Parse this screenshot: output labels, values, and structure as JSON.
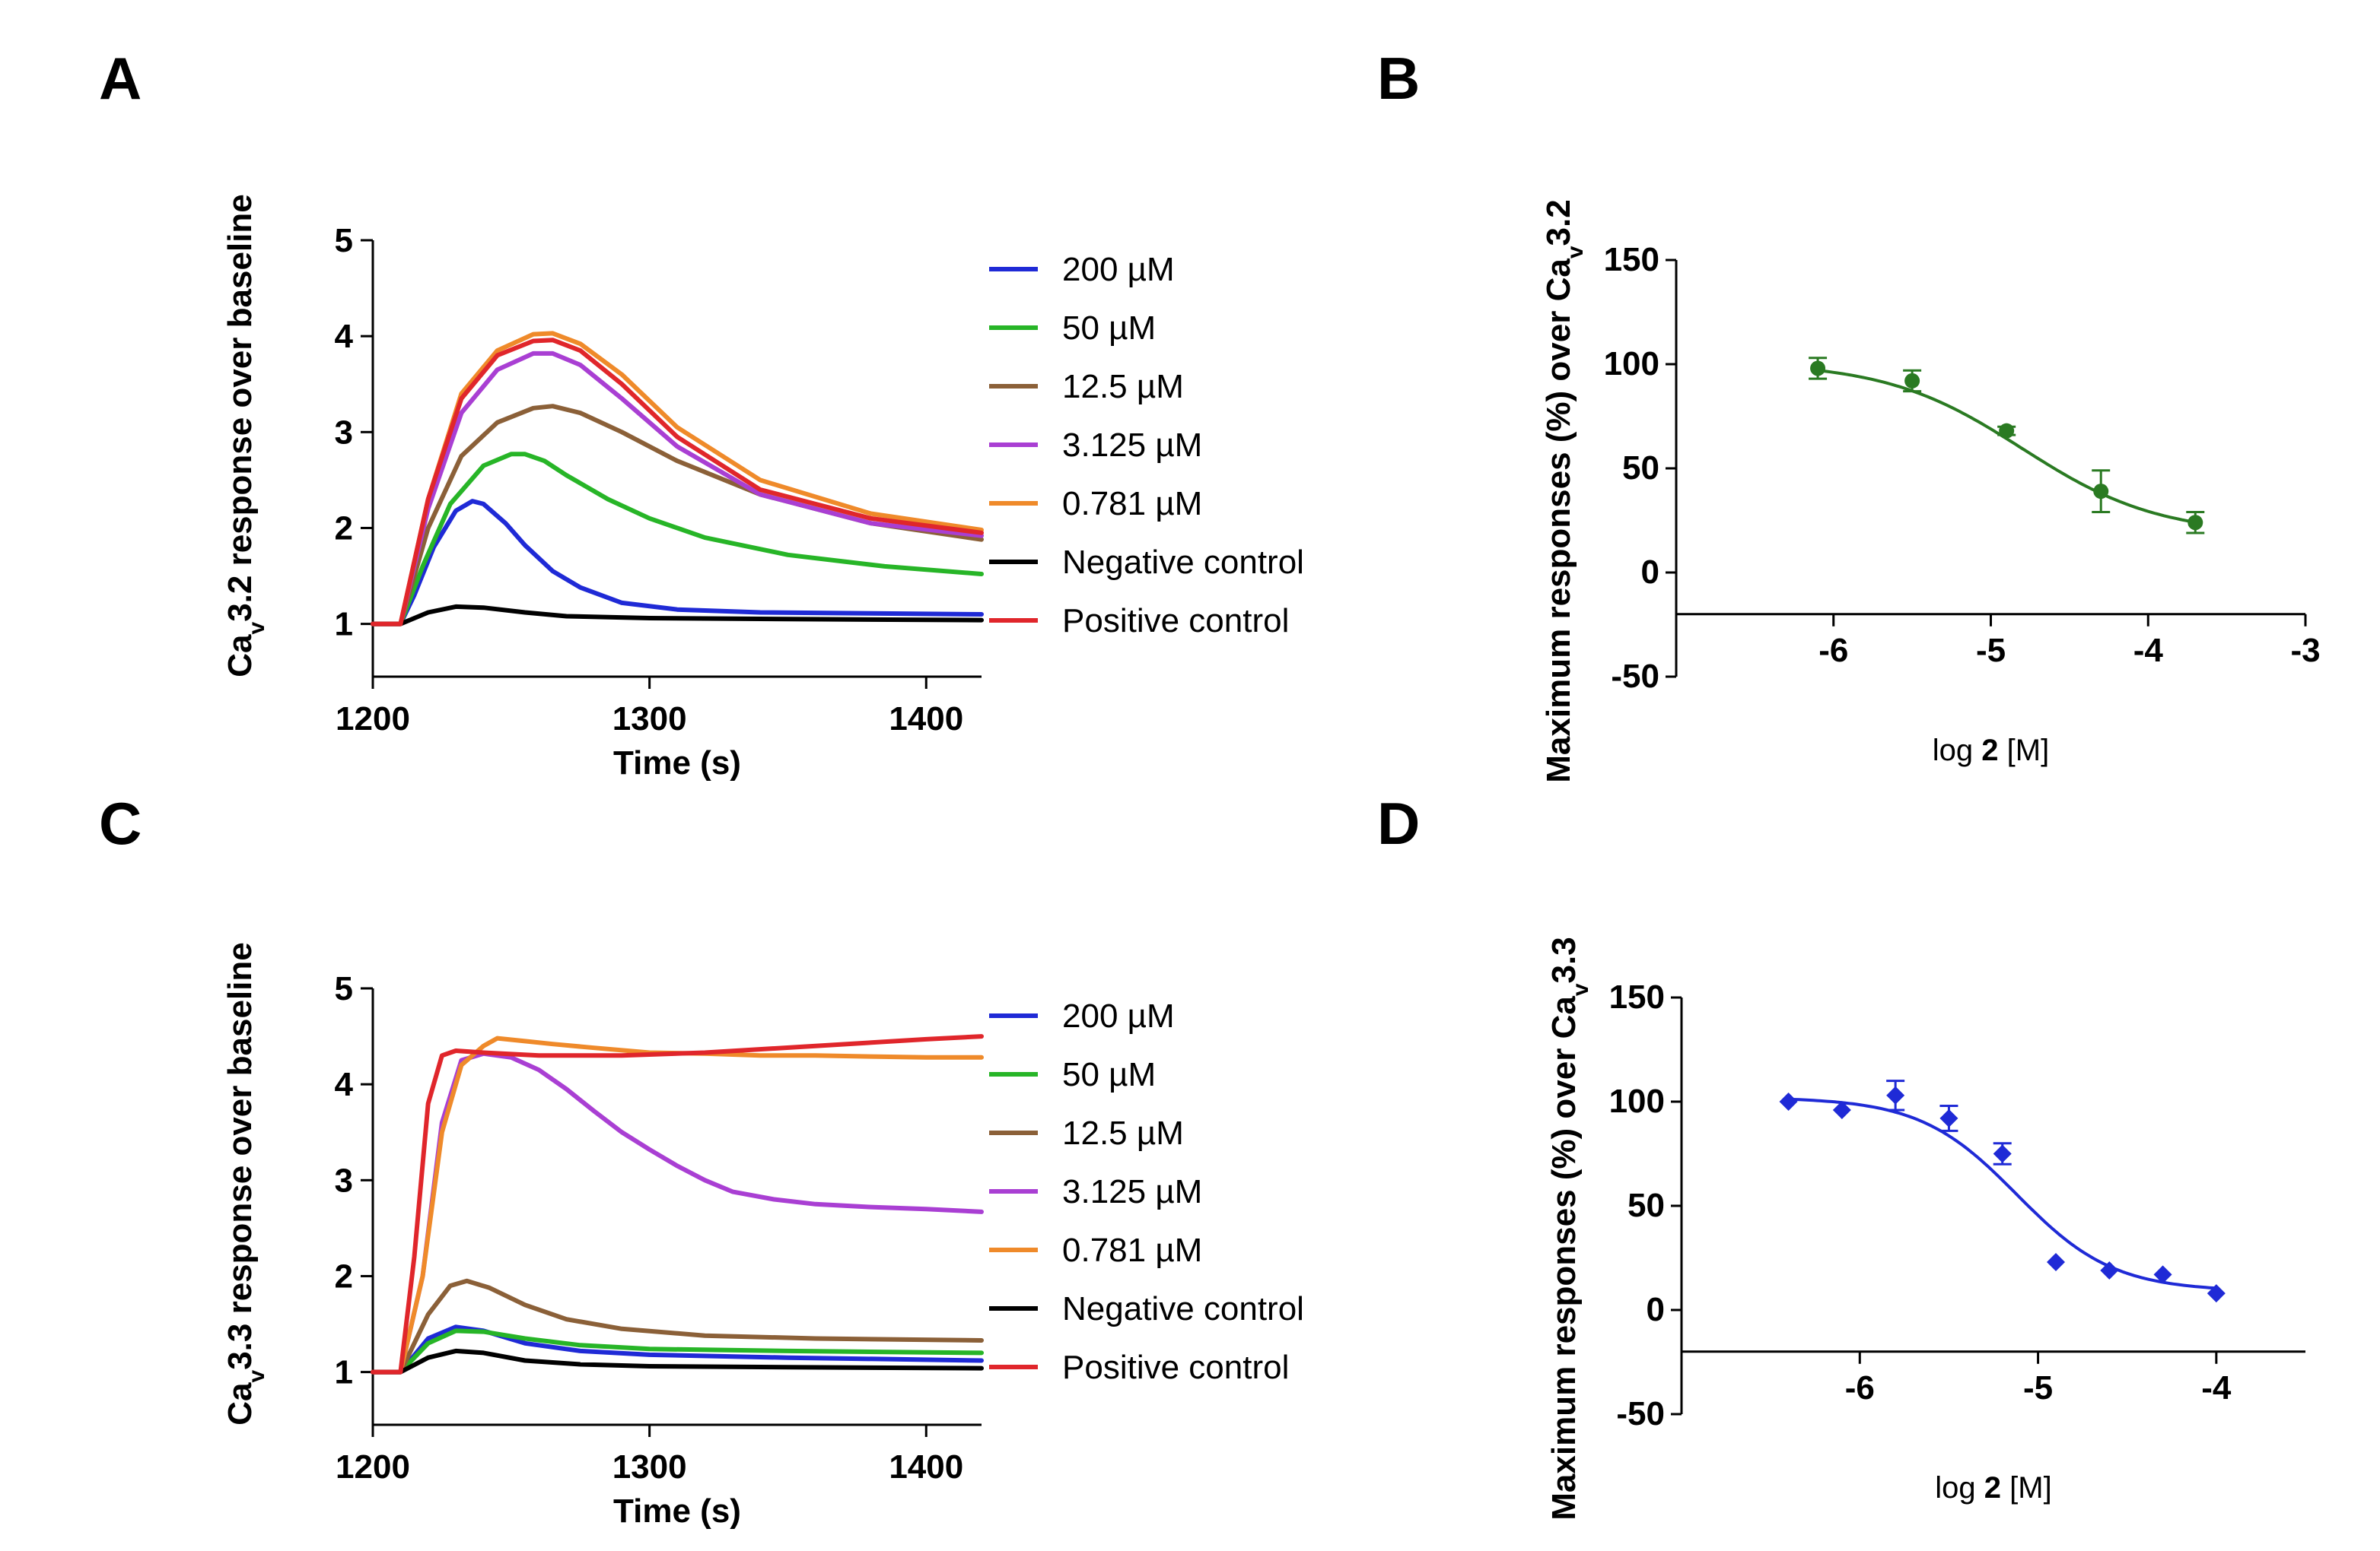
{
  "chart_data": [
    {
      "panel": "A",
      "type": "line",
      "xlabel": "Time (s)",
      "ylabel": "Cav3.2 response over baseline",
      "ylabel_parts": {
        "pre": "Ca",
        "sub": "v",
        "post": "3.2 response over baseline"
      },
      "xlim": [
        1200,
        1420
      ],
      "ylim": [
        0.45,
        5
      ],
      "xticks": [
        1200,
        1300,
        1400
      ],
      "yticks": [
        1,
        2,
        3,
        4,
        5
      ],
      "legend": [
        "200 µM",
        "50 µM",
        "12.5 µM",
        "3.125 µM",
        "0.781 µM",
        "Negative control",
        "Positive control"
      ],
      "series": [
        {
          "name": "200 µM",
          "color": "#1f2ad6",
          "x": [
            1200,
            1210,
            1215,
            1222,
            1230,
            1236,
            1240,
            1248,
            1255,
            1265,
            1275,
            1290,
            1310,
            1340,
            1380,
            1420
          ],
          "y": [
            1.0,
            1.0,
            1.3,
            1.8,
            2.18,
            2.28,
            2.25,
            2.05,
            1.82,
            1.55,
            1.38,
            1.22,
            1.15,
            1.12,
            1.11,
            1.1
          ]
        },
        {
          "name": "50 µM",
          "color": "#27b527",
          "x": [
            1200,
            1210,
            1218,
            1228,
            1240,
            1250,
            1255,
            1262,
            1270,
            1285,
            1300,
            1320,
            1350,
            1385,
            1420
          ],
          "y": [
            1.0,
            1.0,
            1.6,
            2.25,
            2.65,
            2.77,
            2.77,
            2.7,
            2.55,
            2.3,
            2.1,
            1.9,
            1.72,
            1.6,
            1.52
          ]
        },
        {
          "name": "12.5 µM",
          "color": "#8b6038",
          "x": [
            1200,
            1210,
            1220,
            1232,
            1245,
            1258,
            1265,
            1275,
            1290,
            1310,
            1340,
            1380,
            1420
          ],
          "y": [
            1.0,
            1.0,
            2.0,
            2.75,
            3.1,
            3.25,
            3.27,
            3.2,
            3.0,
            2.7,
            2.35,
            2.05,
            1.88
          ]
        },
        {
          "name": "3.125 µM",
          "color": "#a93fd3",
          "x": [
            1200,
            1210,
            1220,
            1232,
            1245,
            1258,
            1265,
            1275,
            1290,
            1310,
            1340,
            1380,
            1420
          ],
          "y": [
            1.0,
            1.0,
            2.2,
            3.2,
            3.65,
            3.82,
            3.82,
            3.7,
            3.35,
            2.85,
            2.35,
            2.05,
            1.92
          ]
        },
        {
          "name": "0.781 µM",
          "color": "#ef8a2a",
          "x": [
            1200,
            1210,
            1220,
            1232,
            1245,
            1258,
            1265,
            1275,
            1290,
            1310,
            1340,
            1380,
            1420
          ],
          "y": [
            1.0,
            1.0,
            2.3,
            3.4,
            3.85,
            4.02,
            4.03,
            3.92,
            3.6,
            3.05,
            2.5,
            2.15,
            1.98
          ]
        },
        {
          "name": "Negative control",
          "color": "#000000",
          "x": [
            1200,
            1210,
            1220,
            1230,
            1240,
            1255,
            1270,
            1300,
            1350,
            1420
          ],
          "y": [
            1.0,
            1.0,
            1.12,
            1.18,
            1.17,
            1.12,
            1.08,
            1.06,
            1.05,
            1.04
          ]
        },
        {
          "name": "Positive control",
          "color": "#e0262b",
          "x": [
            1200,
            1210,
            1220,
            1232,
            1245,
            1258,
            1265,
            1275,
            1290,
            1310,
            1340,
            1380,
            1420
          ],
          "y": [
            1.0,
            1.0,
            2.3,
            3.35,
            3.8,
            3.95,
            3.96,
            3.85,
            3.5,
            2.95,
            2.4,
            2.1,
            1.95
          ]
        }
      ]
    },
    {
      "panel": "B",
      "type": "scatter",
      "xlabel": "log 2 [M]",
      "xlabel_parts": {
        "pre": "log ",
        "bold": "2",
        "post": " [M]"
      },
      "ylabel": "Maximum responses (%) over Cav3.2",
      "ylabel_parts": {
        "pre": "Maximum responses (%) over Ca",
        "sub": "v",
        "post": "3.2"
      },
      "xlim": [
        -7,
        -3
      ],
      "ylim": [
        -50,
        150
      ],
      "xticks": [
        -6,
        -5,
        -4,
        -3
      ],
      "yticks": [
        -50,
        0,
        50,
        100,
        150
      ],
      "baseline_y": -20,
      "color": "#2a7a22",
      "marker": "circle",
      "points": [
        {
          "x": -6.1,
          "y": 98,
          "err": 5
        },
        {
          "x": -5.5,
          "y": 92,
          "err": 5
        },
        {
          "x": -4.9,
          "y": 68,
          "err": 2
        },
        {
          "x": -4.3,
          "y": 39,
          "err": 10
        },
        {
          "x": -3.7,
          "y": 24,
          "err": 5
        }
      ],
      "fit": {
        "top": 101,
        "bottom": 18,
        "logEC50": -4.8,
        "hill": 1.0,
        "from": -6.1,
        "to": -3.7
      }
    },
    {
      "panel": "C",
      "type": "line",
      "xlabel": "Time (s)",
      "ylabel": "Cav3.3 response over baseline",
      "ylabel_parts": {
        "pre": "Ca",
        "sub": "v",
        "post": "3.3 response over baseline"
      },
      "xlim": [
        1200,
        1420
      ],
      "ylim": [
        0.45,
        5
      ],
      "xticks": [
        1200,
        1300,
        1400
      ],
      "yticks": [
        1,
        2,
        3,
        4,
        5
      ],
      "legend": [
        "200 µM",
        "50 µM",
        "12.5 µM",
        "3.125 µM",
        "0.781 µM",
        "Negative control",
        "Positive control"
      ],
      "series": [
        {
          "name": "200 µM",
          "color": "#1f2ad6",
          "x": [
            1200,
            1210,
            1220,
            1230,
            1240,
            1255,
            1275,
            1300,
            1350,
            1420
          ],
          "y": [
            1.0,
            1.0,
            1.35,
            1.47,
            1.43,
            1.3,
            1.22,
            1.18,
            1.15,
            1.12
          ]
        },
        {
          "name": "50 µM",
          "color": "#27b527",
          "x": [
            1200,
            1210,
            1220,
            1230,
            1240,
            1255,
            1275,
            1300,
            1350,
            1420
          ],
          "y": [
            1.0,
            1.0,
            1.3,
            1.43,
            1.42,
            1.35,
            1.28,
            1.24,
            1.22,
            1.2
          ]
        },
        {
          "name": "12.5 µM",
          "color": "#8b6038",
          "x": [
            1200,
            1210,
            1220,
            1228,
            1234,
            1242,
            1255,
            1270,
            1290,
            1320,
            1360,
            1420
          ],
          "y": [
            1.0,
            1.0,
            1.6,
            1.9,
            1.95,
            1.88,
            1.7,
            1.55,
            1.45,
            1.38,
            1.35,
            1.33
          ]
        },
        {
          "name": "3.125 µM",
          "color": "#a93fd3",
          "x": [
            1200,
            1210,
            1218,
            1225,
            1232,
            1240,
            1250,
            1260,
            1270,
            1280,
            1290,
            1300,
            1310,
            1320,
            1330,
            1345,
            1360,
            1380,
            1400,
            1420
          ],
          "y": [
            1.0,
            1.0,
            2.0,
            3.6,
            4.25,
            4.32,
            4.28,
            4.15,
            3.95,
            3.72,
            3.5,
            3.32,
            3.15,
            3.0,
            2.88,
            2.8,
            2.75,
            2.72,
            2.7,
            2.67
          ]
        },
        {
          "name": "0.781 µM",
          "color": "#ef8a2a",
          "x": [
            1200,
            1210,
            1218,
            1225,
            1232,
            1240,
            1245,
            1255,
            1265,
            1280,
            1300,
            1320,
            1340,
            1360,
            1380,
            1400,
            1420
          ],
          "y": [
            1.0,
            1.0,
            2.0,
            3.5,
            4.2,
            4.4,
            4.48,
            4.45,
            4.42,
            4.38,
            4.33,
            4.32,
            4.3,
            4.3,
            4.29,
            4.28,
            4.28
          ]
        },
        {
          "name": "Negative control",
          "color": "#000000",
          "x": [
            1200,
            1210,
            1220,
            1230,
            1240,
            1255,
            1275,
            1300,
            1350,
            1420
          ],
          "y": [
            1.0,
            1.0,
            1.15,
            1.22,
            1.2,
            1.12,
            1.08,
            1.06,
            1.05,
            1.04
          ]
        },
        {
          "name": "Positive control",
          "color": "#e0262b",
          "x": [
            1200,
            1210,
            1215,
            1220,
            1225,
            1230,
            1240,
            1260,
            1290,
            1320,
            1360,
            1400,
            1420
          ],
          "y": [
            1.0,
            1.0,
            2.2,
            3.8,
            4.3,
            4.35,
            4.33,
            4.3,
            4.3,
            4.33,
            4.4,
            4.47,
            4.5
          ]
        }
      ]
    },
    {
      "panel": "D",
      "type": "scatter",
      "xlabel": "log 2 [M]",
      "xlabel_parts": {
        "pre": "log ",
        "bold": "2",
        "post": " [M]"
      },
      "ylabel": "Maximum responses (%) over Cav3.3",
      "ylabel_parts": {
        "pre": "Maximum responses (%) over Ca",
        "sub": "v",
        "post": "3.3"
      },
      "xlim": [
        -7,
        -3.5
      ],
      "ylim": [
        -50,
        150
      ],
      "xticks": [
        -6,
        -5,
        -4
      ],
      "yticks": [
        -50,
        0,
        50,
        100,
        150
      ],
      "baseline_y": -20,
      "color": "#1f2ad6",
      "marker": "diamond",
      "points": [
        {
          "x": -6.4,
          "y": 100,
          "err": 0
        },
        {
          "x": -6.1,
          "y": 96,
          "err": 0
        },
        {
          "x": -5.8,
          "y": 103,
          "err": 7
        },
        {
          "x": -5.5,
          "y": 92,
          "err": 6
        },
        {
          "x": -5.2,
          "y": 75,
          "err": 5
        },
        {
          "x": -4.9,
          "y": 23,
          "err": 0
        },
        {
          "x": -4.6,
          "y": 19,
          "err": 0
        },
        {
          "x": -4.3,
          "y": 17,
          "err": 0
        },
        {
          "x": -4.0,
          "y": 8,
          "err": 0
        }
      ],
      "fit": {
        "top": 102,
        "bottom": 9,
        "logEC50": -5.12,
        "hill": 1.6,
        "from": -6.4,
        "to": -4.0
      }
    }
  ],
  "panels": {
    "A": "A",
    "B": "B",
    "C": "C",
    "D": "D"
  }
}
